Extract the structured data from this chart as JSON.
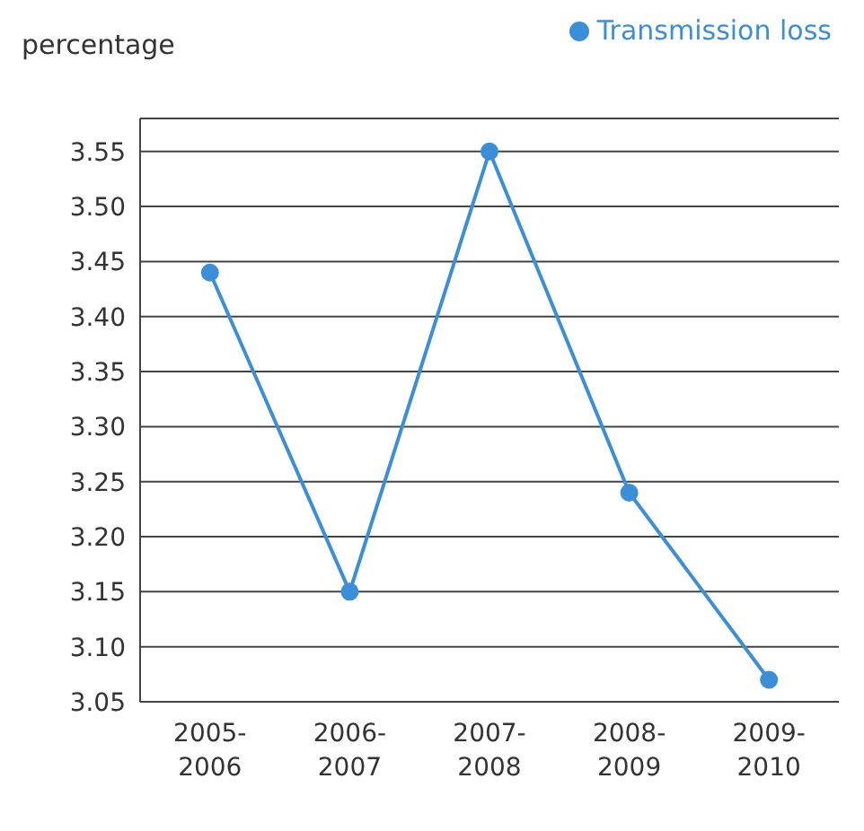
{
  "chart_data": {
    "type": "line",
    "ylabel": "percentage",
    "categories": [
      "2005-2006",
      "2006-2007",
      "2007-2008",
      "2008-2009",
      "2009-2010"
    ],
    "series": [
      {
        "name": "Transmission loss",
        "color": "#3b8fd8",
        "values": [
          3.44,
          3.15,
          3.55,
          3.24,
          3.07
        ]
      }
    ],
    "ylim": [
      3.05,
      3.58
    ],
    "yticks": [
      3.05,
      {
        "value": 3.1,
        "label": "3.10"
      },
      3.15,
      {
        "value": 3.2,
        "label": "3.20"
      },
      3.25,
      {
        "value": 3.3,
        "label": "3.30"
      },
      3.35,
      {
        "value": 3.4,
        "label": "3.40"
      },
      3.45,
      {
        "value": 3.5,
        "label": "3.50"
      },
      3.55
    ],
    "grid": "y",
    "legend": "top right",
    "marker": "circle",
    "line_style": "solid"
  }
}
